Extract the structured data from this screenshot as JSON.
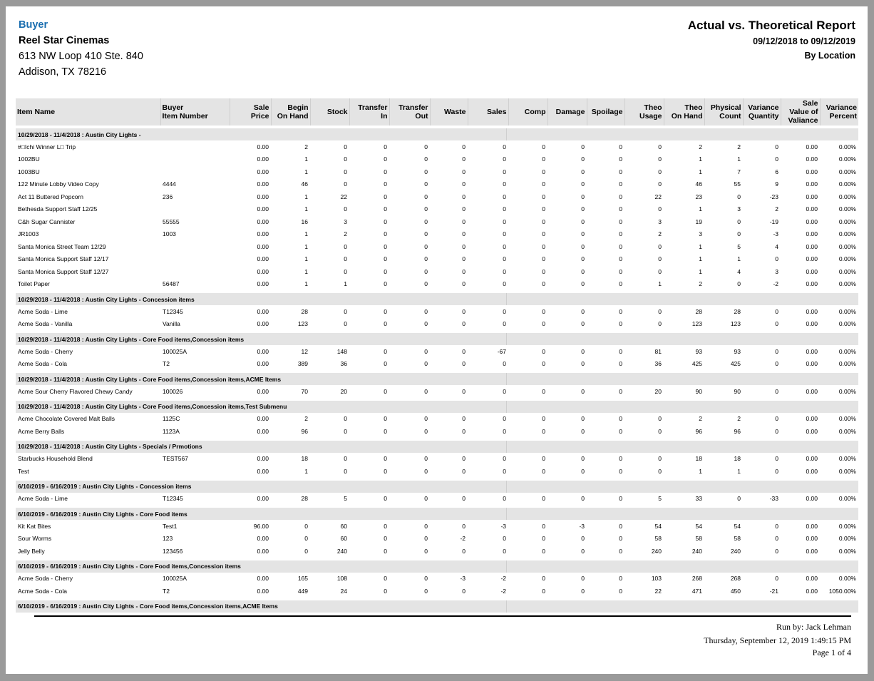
{
  "header": {
    "buyer_label": "Buyer",
    "company": "Reel Star Cinemas",
    "address_line1": "613 NW Loop 410 Ste. 840",
    "address_line2": "Addison, TX 78216",
    "title": "Actual vs. Theoretical Report",
    "date_range": "09/12/2018 to 09/12/2019",
    "grouping": "By Location"
  },
  "columns": [
    [
      "Item Name"
    ],
    [
      "Buyer",
      "Item Number"
    ],
    [
      "Sale",
      "Price"
    ],
    [
      "Begin",
      "On Hand"
    ],
    [
      "Stock"
    ],
    [
      "Transfer",
      "In"
    ],
    [
      "Transfer",
      "Out"
    ],
    [
      "Waste"
    ],
    [
      "Sales"
    ],
    [
      "Comp"
    ],
    [
      "Damage"
    ],
    [
      "Spoilage"
    ],
    [
      "Theo",
      "Usage"
    ],
    [
      "Theo",
      "On Hand"
    ],
    [
      "Physical",
      "Count"
    ],
    [
      "Variance",
      "Quantity"
    ],
    [
      "Sale",
      "Value of",
      "Valiance"
    ],
    [
      "Variance",
      "Percent"
    ]
  ],
  "groups": [
    {
      "label": "10/29/2018 - 11/4/2018  :  Austin City Lights  -",
      "rows": [
        [
          "#□Ichi Winner L□ Trip",
          "",
          "0.00",
          "2",
          "0",
          "0",
          "0",
          "0",
          "0",
          "0",
          "0",
          "0",
          "0",
          "2",
          "2",
          "0",
          "0.00",
          "0.00%"
        ],
        [
          "1002BU",
          "",
          "0.00",
          "1",
          "0",
          "0",
          "0",
          "0",
          "0",
          "0",
          "0",
          "0",
          "0",
          "1",
          "1",
          "0",
          "0.00",
          "0.00%"
        ],
        [
          "1003BU",
          "",
          "0.00",
          "1",
          "0",
          "0",
          "0",
          "0",
          "0",
          "0",
          "0",
          "0",
          "0",
          "1",
          "7",
          "6",
          "0.00",
          "0.00%"
        ],
        [
          "122 Minute Lobby Video Copy",
          "4444",
          "0.00",
          "46",
          "0",
          "0",
          "0",
          "0",
          "0",
          "0",
          "0",
          "0",
          "0",
          "46",
          "55",
          "9",
          "0.00",
          "0.00%"
        ],
        [
          "Act 11 Buttered Popcorn",
          "236",
          "0.00",
          "1",
          "22",
          "0",
          "0",
          "0",
          "0",
          "0",
          "0",
          "0",
          "22",
          "23",
          "0",
          "-23",
          "0.00",
          "0.00%"
        ],
        [
          "Bethesda Support Staff 12/25",
          "",
          "0.00",
          "1",
          "0",
          "0",
          "0",
          "0",
          "0",
          "0",
          "0",
          "0",
          "0",
          "1",
          "3",
          "2",
          "0.00",
          "0.00%"
        ],
        [
          "C&h Sugar Cannister",
          "55555",
          "0.00",
          "16",
          "3",
          "0",
          "0",
          "0",
          "0",
          "0",
          "0",
          "0",
          "3",
          "19",
          "0",
          "-19",
          "0.00",
          "0.00%"
        ],
        [
          "JR1003",
          "1003",
          "0.00",
          "1",
          "2",
          "0",
          "0",
          "0",
          "0",
          "0",
          "0",
          "0",
          "2",
          "3",
          "0",
          "-3",
          "0.00",
          "0.00%"
        ],
        [
          "Santa Monica Street Team 12/29",
          "",
          "0.00",
          "1",
          "0",
          "0",
          "0",
          "0",
          "0",
          "0",
          "0",
          "0",
          "0",
          "1",
          "5",
          "4",
          "0.00",
          "0.00%"
        ],
        [
          "Santa Monica Support Staff 12/17",
          "",
          "0.00",
          "1",
          "0",
          "0",
          "0",
          "0",
          "0",
          "0",
          "0",
          "0",
          "0",
          "1",
          "1",
          "0",
          "0.00",
          "0.00%"
        ],
        [
          "Santa Monica Support Staff 12/27",
          "",
          "0.00",
          "1",
          "0",
          "0",
          "0",
          "0",
          "0",
          "0",
          "0",
          "0",
          "0",
          "1",
          "4",
          "3",
          "0.00",
          "0.00%"
        ],
        [
          "Toilet Paper",
          "56487",
          "0.00",
          "1",
          "1",
          "0",
          "0",
          "0",
          "0",
          "0",
          "0",
          "0",
          "1",
          "2",
          "0",
          "-2",
          "0.00",
          "0.00%"
        ]
      ]
    },
    {
      "label": "10/29/2018 - 11/4/2018  :  Austin City Lights  -  Concession items",
      "rows": [
        [
          "Acme Soda - Lime",
          "T12345",
          "0.00",
          "28",
          "0",
          "0",
          "0",
          "0",
          "0",
          "0",
          "0",
          "0",
          "0",
          "28",
          "28",
          "0",
          "0.00",
          "0.00%"
        ],
        [
          "Acme Soda - Vanilla",
          "Vanilla",
          "0.00",
          "123",
          "0",
          "0",
          "0",
          "0",
          "0",
          "0",
          "0",
          "0",
          "0",
          "123",
          "123",
          "0",
          "0.00",
          "0.00%"
        ]
      ]
    },
    {
      "label": "10/29/2018 - 11/4/2018  :  Austin City Lights  -  Core Food items,Concession items",
      "rows": [
        [
          "Acme Soda - Cherry",
          "100025A",
          "0.00",
          "12",
          "148",
          "0",
          "0",
          "0",
          "-67",
          "0",
          "0",
          "0",
          "81",
          "93",
          "93",
          "0",
          "0.00",
          "0.00%"
        ],
        [
          "Acme Soda - Cola",
          "T2",
          "0.00",
          "389",
          "36",
          "0",
          "0",
          "0",
          "0",
          "0",
          "0",
          "0",
          "36",
          "425",
          "425",
          "0",
          "0.00",
          "0.00%"
        ]
      ]
    },
    {
      "label": "10/29/2018 - 11/4/2018  :  Austin City Lights  -  Core Food items,Concession items,ACME Items",
      "rows": [
        [
          "Acme Sour Cherry Flavored Chewy Candy",
          "100026",
          "0.00",
          "70",
          "20",
          "0",
          "0",
          "0",
          "0",
          "0",
          "0",
          "0",
          "20",
          "90",
          "90",
          "0",
          "0.00",
          "0.00%"
        ]
      ]
    },
    {
      "label": "10/29/2018 - 11/4/2018  :  Austin City Lights  -  Core Food items,Concession items,Test Submenu",
      "rows": [
        [
          "Acme Chocolate Covered Malt Balls",
          "1125C",
          "0.00",
          "2",
          "0",
          "0",
          "0",
          "0",
          "0",
          "0",
          "0",
          "0",
          "0",
          "2",
          "2",
          "0",
          "0.00",
          "0.00%"
        ],
        [
          "Acme Berry Balls",
          "1123A",
          "0.00",
          "96",
          "0",
          "0",
          "0",
          "0",
          "0",
          "0",
          "0",
          "0",
          "0",
          "96",
          "96",
          "0",
          "0.00",
          "0.00%"
        ]
      ]
    },
    {
      "label": "10/29/2018 - 11/4/2018  :  Austin City Lights  -  Specials /  Prmotions",
      "rows": [
        [
          "Starbucks Household Blend",
          "TEST567",
          "0.00",
          "18",
          "0",
          "0",
          "0",
          "0",
          "0",
          "0",
          "0",
          "0",
          "0",
          "18",
          "18",
          "0",
          "0.00",
          "0.00%"
        ],
        [
          "Test",
          "",
          "0.00",
          "1",
          "0",
          "0",
          "0",
          "0",
          "0",
          "0",
          "0",
          "0",
          "0",
          "1",
          "1",
          "0",
          "0.00",
          "0.00%"
        ]
      ]
    },
    {
      "label": "6/10/2019 - 6/16/2019  :  Austin City Lights  -  Concession items",
      "rows": [
        [
          "Acme Soda - Lime",
          "T12345",
          "0.00",
          "28",
          "5",
          "0",
          "0",
          "0",
          "0",
          "0",
          "0",
          "0",
          "5",
          "33",
          "0",
          "-33",
          "0.00",
          "0.00%"
        ]
      ]
    },
    {
      "label": "6/10/2019 - 6/16/2019  :  Austin City Lights  -  Core Food items",
      "rows": [
        [
          "Kit Kat Bites",
          "Test1",
          "96.00",
          "0",
          "60",
          "0",
          "0",
          "0",
          "-3",
          "0",
          "-3",
          "0",
          "54",
          "54",
          "54",
          "0",
          "0.00",
          "0.00%"
        ],
        [
          "Sour Worms",
          "123",
          "0.00",
          "0",
          "60",
          "0",
          "0",
          "-2",
          "0",
          "0",
          "0",
          "0",
          "58",
          "58",
          "58",
          "0",
          "0.00",
          "0.00%"
        ],
        [
          "Jelly Belly",
          "123456",
          "0.00",
          "0",
          "240",
          "0",
          "0",
          "0",
          "0",
          "0",
          "0",
          "0",
          "240",
          "240",
          "240",
          "0",
          "0.00",
          "0.00%"
        ]
      ]
    },
    {
      "label": "6/10/2019 - 6/16/2019  :  Austin City Lights  -  Core Food items,Concession items",
      "rows": [
        [
          "Acme Soda - Cherry",
          "100025A",
          "0.00",
          "165",
          "108",
          "0",
          "0",
          "-3",
          "-2",
          "0",
          "0",
          "0",
          "103",
          "268",
          "268",
          "0",
          "0.00",
          "0.00%"
        ],
        [
          "Acme Soda - Cola",
          "T2",
          "0.00",
          "449",
          "24",
          "0",
          "0",
          "0",
          "-2",
          "0",
          "0",
          "0",
          "22",
          "471",
          "450",
          "-21",
          "0.00",
          "1050.00%"
        ]
      ]
    },
    {
      "label": "6/10/2019 - 6/16/2019  :  Austin City Lights  -  Core Food items,Concession items,ACME Items",
      "rows": []
    }
  ],
  "footer": {
    "run_by": "Run by: Jack Lehman",
    "timestamp": "Thursday, September 12,  2019   1:49:15 PM",
    "page": "Page 1 of 4"
  }
}
